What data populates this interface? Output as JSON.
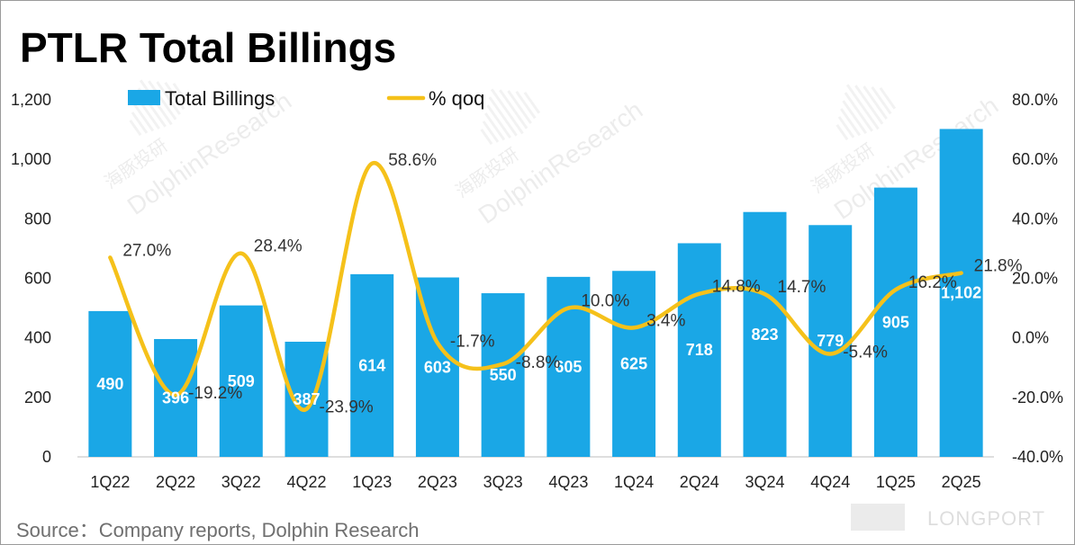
{
  "chart_data": {
    "type": "bar",
    "title": "PTLR Total Billings",
    "categories": [
      "1Q22",
      "2Q22",
      "3Q22",
      "4Q22",
      "1Q23",
      "2Q23",
      "3Q23",
      "4Q23",
      "1Q24",
      "2Q24",
      "3Q24",
      "4Q24",
      "1Q25",
      "2Q25"
    ],
    "series": [
      {
        "name": "Total Billings",
        "type": "bar",
        "axis": "left",
        "color": "#1aa7e6",
        "values": [
          490,
          396,
          509,
          387,
          614,
          603,
          550,
          605,
          625,
          718,
          823,
          779,
          905,
          1102
        ],
        "labels": [
          "490",
          "396",
          "509",
          "387",
          "614",
          "603",
          "550",
          "605",
          "625",
          "718",
          "823",
          "779",
          "905",
          "1,102"
        ]
      },
      {
        "name": "% qoq",
        "type": "line",
        "axis": "right",
        "color": "#f5c11a",
        "values": [
          27.0,
          -19.2,
          28.4,
          -23.9,
          58.6,
          -1.7,
          -8.8,
          10.0,
          3.4,
          14.8,
          14.7,
          -5.4,
          16.2,
          21.8
        ],
        "labels": [
          "27.0%",
          "-19.2%",
          "28.4%",
          "-23.9%",
          "58.6%",
          "-1.7%",
          "-8.8%",
          "10.0%",
          "3.4%",
          "14.8%",
          "14.7%",
          "-5.4%",
          "16.2%",
          "21.8%"
        ]
      }
    ],
    "y_left": {
      "min": 0,
      "max": 1200,
      "ticks": [
        0,
        200,
        400,
        600,
        800,
        1000,
        1200
      ],
      "tick_labels": [
        "0",
        "200",
        "400",
        "600",
        "800",
        "1,000",
        "1,200"
      ]
    },
    "y_right": {
      "min": -40,
      "max": 80,
      "ticks": [
        -40,
        -20,
        0,
        20,
        40,
        60,
        80
      ],
      "tick_labels": [
        "-40.0%",
        "-20.0%",
        "0.0%",
        "20.0%",
        "40.0%",
        "60.0%",
        "80.0%"
      ]
    },
    "legend": "top",
    "grid": false
  },
  "source_text": "Source：Company reports, Dolphin Research",
  "watermark": {
    "brand_text": "LONGPORT",
    "repeat_text": "DolphinResearch",
    "cn_text": "海豚投研"
  }
}
